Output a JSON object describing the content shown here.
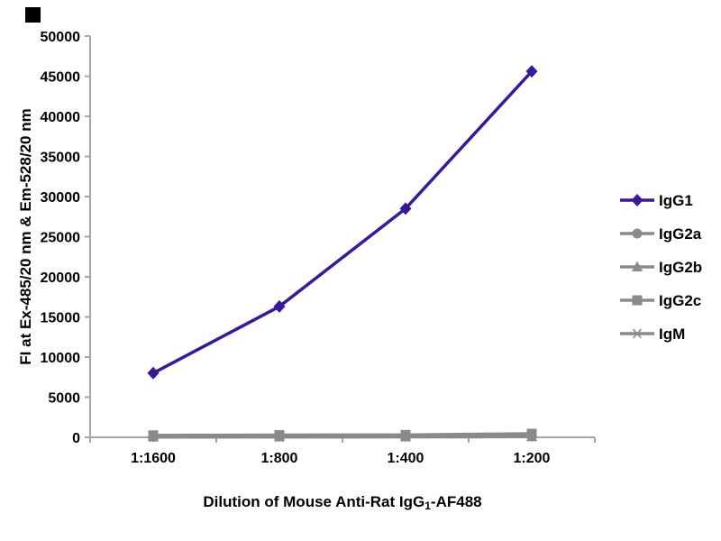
{
  "page": {
    "background": "#ffffff",
    "corner_mark_color": "#000000"
  },
  "chart_data": {
    "type": "line",
    "title": "",
    "xlabel": "Dilution of Mouse Anti-Rat IgG1-AF488",
    "xlabel_parts": {
      "pre": "Dilution of Mouse Anti-Rat IgG",
      "sub": "1",
      "post": "-AF488"
    },
    "ylabel": "FI at Ex-485/20 nm & Em-528/20 nm",
    "categories": [
      "1:1600",
      "1:800",
      "1:400",
      "1:200"
    ],
    "ylim": [
      0,
      50000
    ],
    "y_ticks": [
      0,
      5000,
      10000,
      15000,
      20000,
      25000,
      30000,
      35000,
      40000,
      45000,
      50000
    ],
    "grid": false,
    "legend_position": "right",
    "axis_color": "#a6a6a6",
    "text_color": "#000000",
    "series": [
      {
        "name": "IgG1",
        "color": "#39189b",
        "marker": "diamond",
        "line_width": 3.5,
        "values": [
          8000,
          16300,
          28500,
          45600
        ]
      },
      {
        "name": "IgG2a",
        "color": "#8a8a8a",
        "marker": "circle",
        "line_width": 3.5,
        "values": [
          60,
          80,
          90,
          120
        ]
      },
      {
        "name": "IgG2b",
        "color": "#8a8a8a",
        "marker": "triangle",
        "line_width": 3.5,
        "values": [
          50,
          70,
          80,
          100
        ]
      },
      {
        "name": "IgG2c",
        "color": "#8a8a8a",
        "marker": "square",
        "line_width": 3.5,
        "values": [
          250,
          280,
          300,
          450
        ]
      },
      {
        "name": "IgM",
        "color": "#8a8a8a",
        "marker": "star",
        "line_width": 3.5,
        "values": [
          30,
          40,
          50,
          80
        ]
      }
    ]
  }
}
